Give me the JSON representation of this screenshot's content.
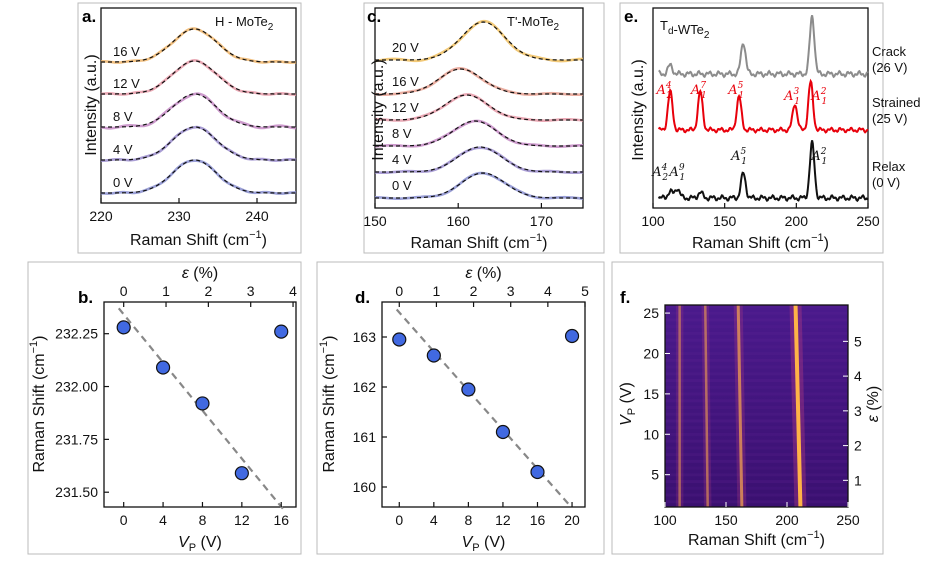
{
  "chart_data": [
    {
      "panel": "a.",
      "type": "line",
      "title": "H - MoTe2",
      "xlabel": "Raman Shift (cm−1)",
      "ylabel": "Intensity (a.u.)",
      "xlim": [
        220,
        245
      ],
      "xticks": [
        220,
        230,
        240
      ],
      "peak_center": 232,
      "series": [
        {
          "name": "0 V",
          "color": "#8a8fd0"
        },
        {
          "name": "4 V",
          "color": "#9a8ccc"
        },
        {
          "name": "8 V",
          "color": "#c48ac4"
        },
        {
          "name": "12 V",
          "color": "#e69aa8"
        },
        {
          "name": "16 V",
          "color": "#f0b56a"
        }
      ]
    },
    {
      "panel": "c.",
      "type": "line",
      "title": "T'-MoTe2",
      "xlabel": "Raman Shift (cm−1)",
      "ylabel": "Intensity (a.u.)",
      "xlim": [
        150,
        175
      ],
      "xticks": [
        150,
        160,
        170
      ],
      "series": [
        {
          "name": "0 V",
          "color": "#8a8fd0",
          "peak": 163
        },
        {
          "name": "4 V",
          "color": "#9a8ccc",
          "peak": 162.6
        },
        {
          "name": "8 V",
          "color": "#c48ac4",
          "peak": 162
        },
        {
          "name": "12 V",
          "color": "#e69aa8",
          "peak": 161
        },
        {
          "name": "16 V",
          "color": "#e8a090",
          "peak": 160.3
        },
        {
          "name": "20 V",
          "color": "#f0c060",
          "peak": 163
        }
      ]
    },
    {
      "panel": "e.",
      "type": "line",
      "title": "Td-WTe2",
      "xlabel": "Raman Shift (cm−1)",
      "ylabel": "Intensity (a.u.)",
      "xlim": [
        100,
        250
      ],
      "xticks": [
        100,
        150,
        200,
        250
      ],
      "series": [
        {
          "name": "Relax",
          "sub": "(0 V)",
          "color": "#111111",
          "peaks": [
            [
              112,
              0.12
            ],
            [
              117,
              0.18
            ],
            [
              133,
              0.1
            ],
            [
              163,
              0.45
            ],
            [
              211,
              1.0
            ]
          ]
        },
        {
          "name": "Strained",
          "sub": "(25 V)",
          "color": "#e8000b",
          "peaks": [
            [
              112,
              0.8
            ],
            [
              133,
              0.8
            ],
            [
              160,
              0.7
            ],
            [
              199,
              0.55
            ],
            [
              210,
              1.0
            ]
          ]
        },
        {
          "name": "Crack",
          "sub": "(26 V)",
          "color": "#8c8c8c",
          "peaks": [
            [
              112,
              0.15
            ],
            [
              163,
              0.55
            ],
            [
              211,
              1.0
            ]
          ]
        }
      ],
      "annotations": [
        {
          "text": "A",
          "sup": "4",
          "sub": "2",
          "color": "#e8000b",
          "x": 108
        },
        {
          "text": "A",
          "sup": "7",
          "sub": "1",
          "color": "#e8000b",
          "x": 132
        },
        {
          "text": "A",
          "sup": "5",
          "sub": "1",
          "color": "#e8000b",
          "x": 158
        },
        {
          "text": "A",
          "sup": "3",
          "sub": "1",
          "color": "#e8000b",
          "x": 197
        },
        {
          "text": "A",
          "sup": "2",
          "sub": "1",
          "color": "#e8000b",
          "x": 216
        },
        {
          "text": "A",
          "sup": "4",
          "sub": "2",
          "color": "#111111",
          "x": 105
        },
        {
          "text": "A",
          "sup": "9",
          "sub": "1",
          "color": "#111111",
          "x": 117
        },
        {
          "text": "A",
          "sup": "5",
          "sub": "1",
          "color": "#111111",
          "x": 160
        },
        {
          "text": "A",
          "sup": "2",
          "sub": "1",
          "color": "#111111",
          "x": 216
        }
      ]
    },
    {
      "panel": "b.",
      "type": "scatter",
      "xlabel": "VP (V)",
      "ylabel": "Raman Shift (cm−1)",
      "top_xlabel": "ε (%)",
      "xlim": [
        -2,
        17.5
      ],
      "ylim": [
        231.43,
        232.4
      ],
      "xticks": [
        0,
        4,
        8,
        12,
        16
      ],
      "yticks": [
        231.5,
        231.75,
        232.0,
        232.25
      ],
      "top_ticks": [
        {
          "x": 0,
          "label": "0"
        },
        {
          "x": 4.3,
          "label": "1"
        },
        {
          "x": 8.6,
          "label": "2"
        },
        {
          "x": 12.9,
          "label": "3"
        },
        {
          "x": 17.2,
          "label": "4"
        }
      ],
      "x": [
        0,
        4,
        8,
        12,
        16
      ],
      "y": [
        232.28,
        232.09,
        231.92,
        231.59,
        232.26
      ],
      "fit": {
        "x": [
          -0.5,
          16.2
        ],
        "y": [
          232.37,
          231.42
        ]
      },
      "marker_color": "#4169e1"
    },
    {
      "panel": "d.",
      "type": "scatter",
      "xlabel": "VP (V)",
      "ylabel": "Raman Shift (cm−1)",
      "top_xlabel": "ε (%)",
      "xlim": [
        -2,
        21.5
      ],
      "ylim": [
        159.6,
        163.7
      ],
      "xticks": [
        0,
        4,
        8,
        12,
        16,
        20
      ],
      "yticks": [
        160,
        161,
        162,
        163
      ],
      "top_ticks": [
        {
          "x": 0,
          "label": "0"
        },
        {
          "x": 4.3,
          "label": "1"
        },
        {
          "x": 8.6,
          "label": "2"
        },
        {
          "x": 12.9,
          "label": "3"
        },
        {
          "x": 17.2,
          "label": "4"
        },
        {
          "x": 21.5,
          "label": "5"
        }
      ],
      "x": [
        0,
        4,
        8,
        12,
        16,
        20
      ],
      "y": [
        162.95,
        162.63,
        161.95,
        161.1,
        160.3,
        163.02
      ],
      "fit": {
        "x": [
          -0.3,
          19.8
        ],
        "y": [
          163.55,
          159.62
        ]
      },
      "marker_color": "#4169e1"
    },
    {
      "panel": "f.",
      "type": "heatmap",
      "xlabel": "Raman Shift (cm−1)",
      "ylabel": "VP (V)",
      "right_ylabel": "ε (%)",
      "xlim": [
        100,
        250
      ],
      "ylim": [
        1,
        26
      ],
      "xticks": [
        100,
        150,
        200,
        250
      ],
      "yticks": [
        5,
        10,
        15,
        20,
        25
      ],
      "right_ticks": [
        {
          "y": 4.3,
          "label": "1"
        },
        {
          "y": 8.6,
          "label": "2"
        },
        {
          "y": 12.9,
          "label": "3"
        },
        {
          "y": 17.2,
          "label": "4"
        },
        {
          "y": 21.5,
          "label": "5"
        }
      ],
      "lines": [
        {
          "x0": 112,
          "x1": 112,
          "w": 2.5,
          "a": 0.55
        },
        {
          "x0": 135,
          "x1": 133,
          "w": 2.5,
          "a": 0.6
        },
        {
          "x0": 163,
          "x1": 160,
          "w": 3,
          "a": 0.75
        },
        {
          "x0": 211,
          "x1": 207,
          "w": 4,
          "a": 1.0
        }
      ]
    }
  ]
}
